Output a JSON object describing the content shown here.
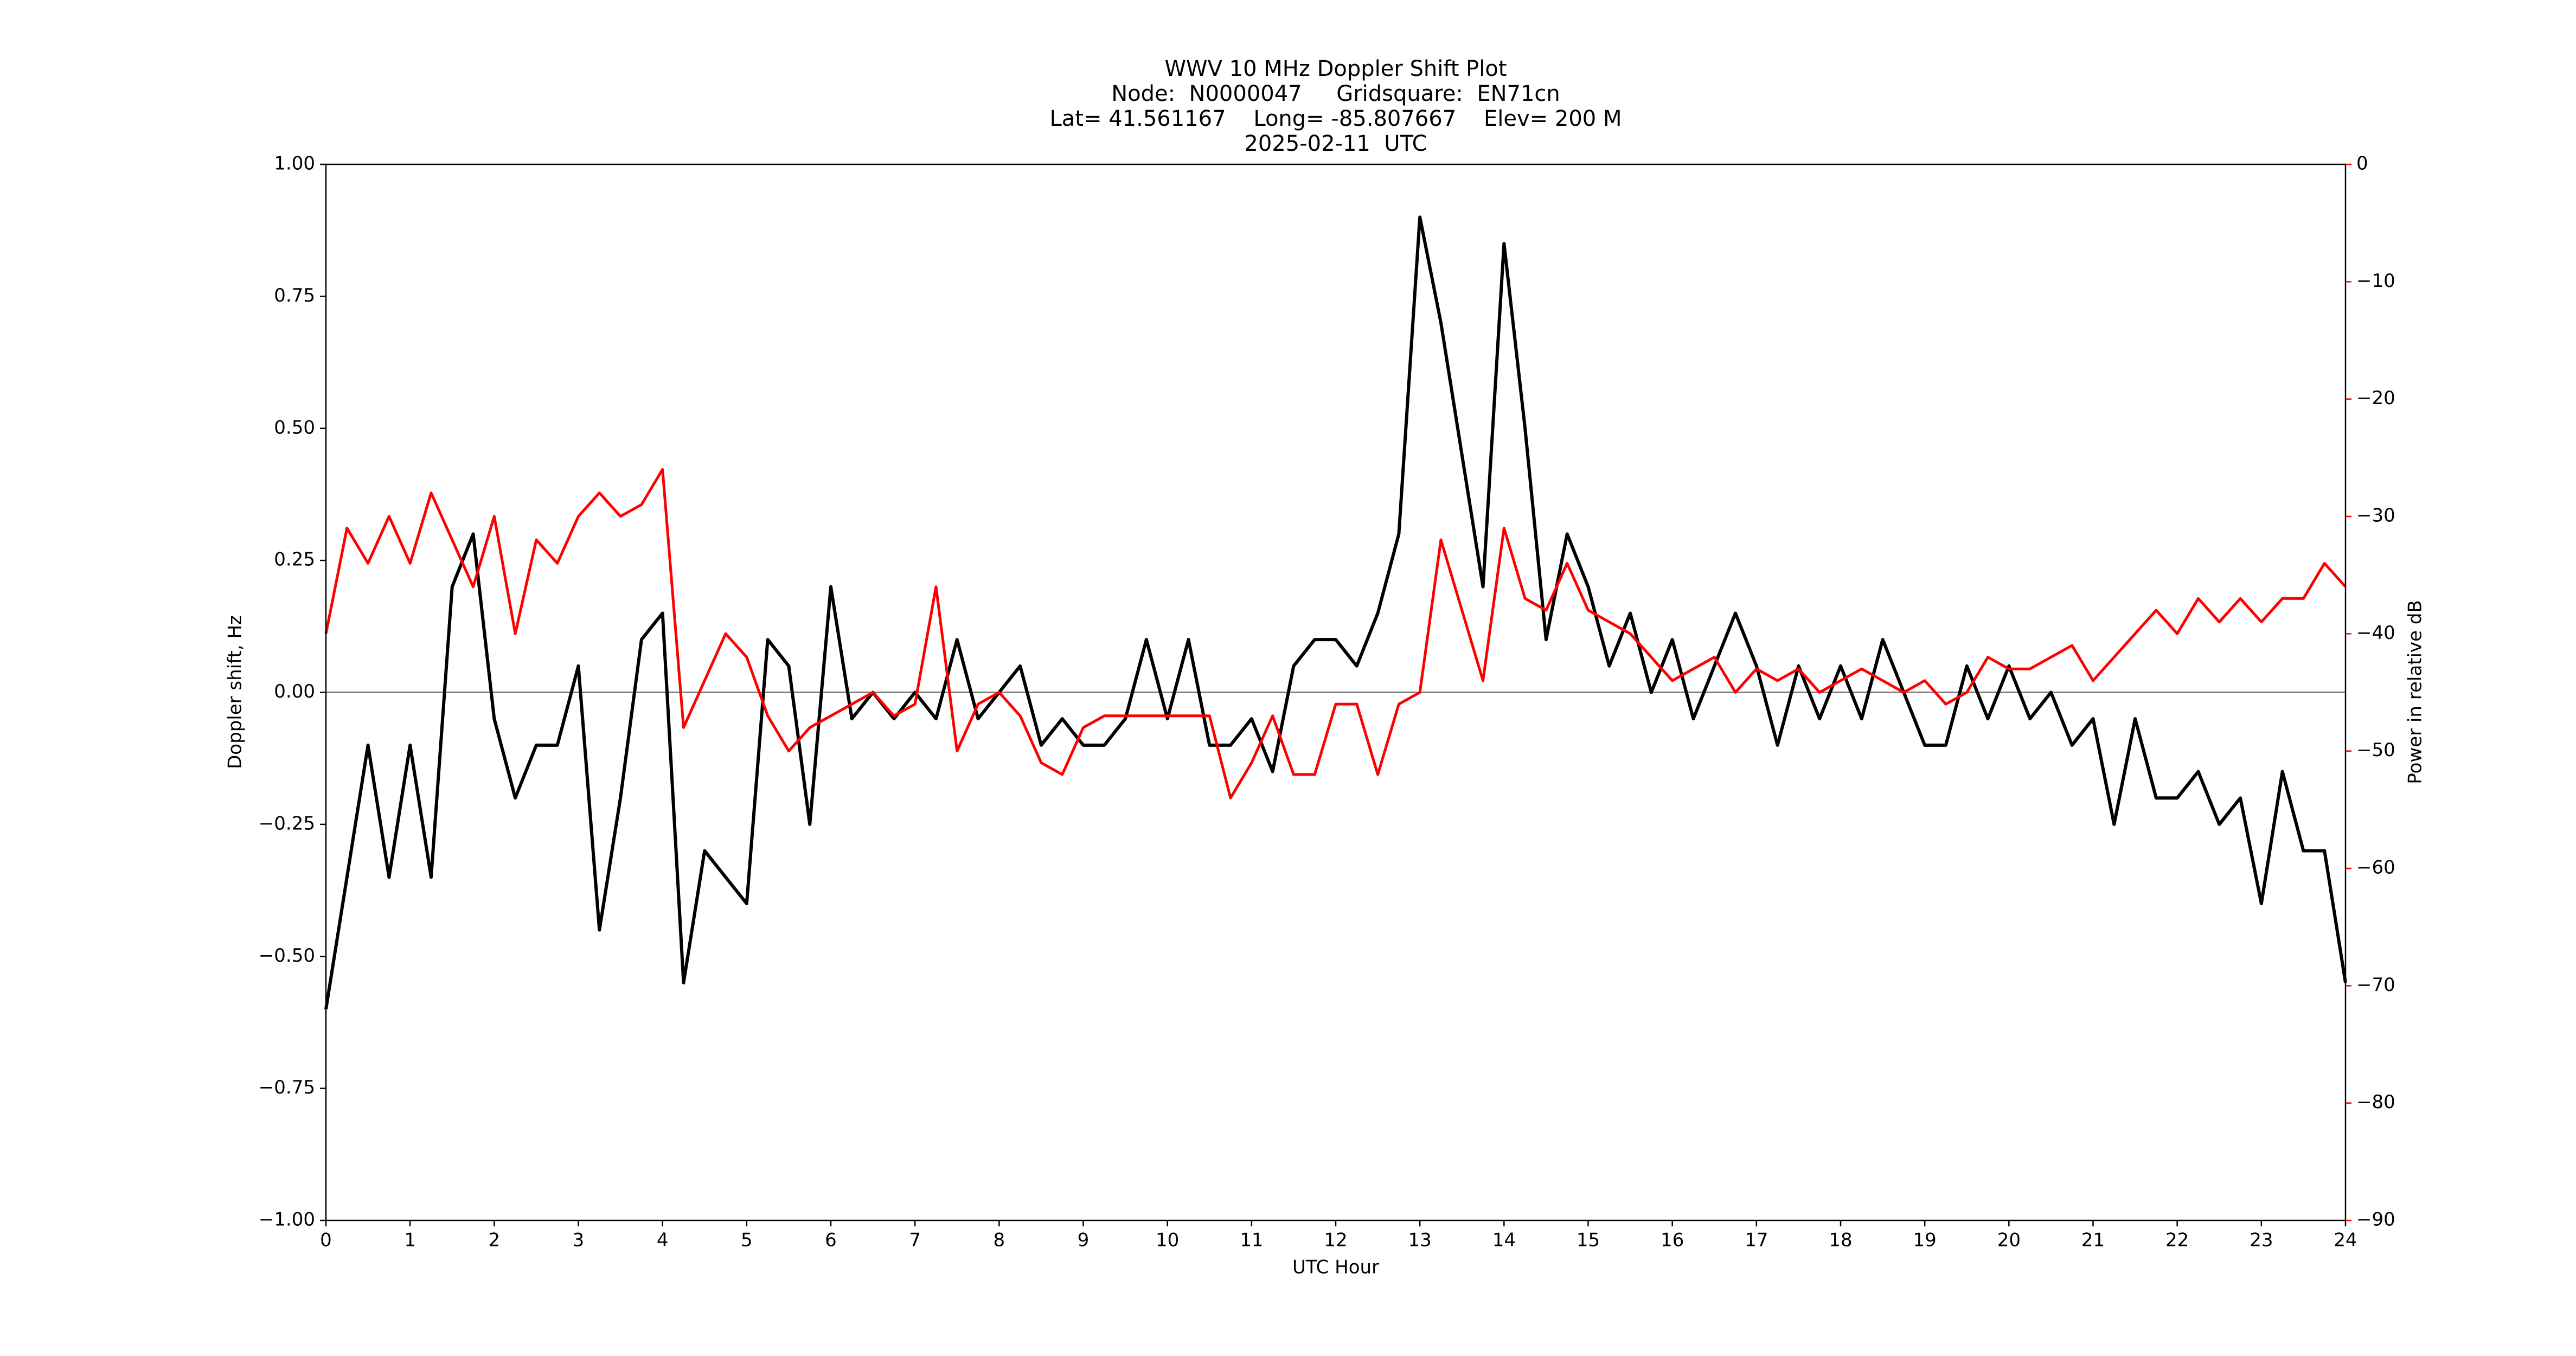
{
  "chart_data": {
    "type": "line",
    "title": "WWV 10 MHz Doppler Shift Plot",
    "subtitle": [
      "Node:  N0000047     Gridsquare:  EN71cn",
      "Lat= 41.561167    Long= -85.807667    Elev= 200 M",
      "2025-02-11  UTC"
    ],
    "x_label": "UTC Hour",
    "y_label": "Doppler shift, Hz",
    "y2_label": "Power in relative dB",
    "y2_color": "#ff0000",
    "hline": 0,
    "hline_color": "#808080",
    "xlim": [
      0,
      24
    ],
    "xticks": [
      0,
      1,
      2,
      3,
      4,
      5,
      6,
      7,
      8,
      9,
      10,
      11,
      12,
      13,
      14,
      15,
      16,
      17,
      18,
      19,
      20,
      21,
      22,
      23,
      24
    ],
    "ylim": [
      -1,
      1
    ],
    "yticks": [
      {
        "value": -1,
        "label": "−1.00"
      },
      {
        "value": -0.75,
        "label": "−0.75"
      },
      {
        "value": -0.5,
        "label": "−0.50"
      },
      {
        "value": -0.25,
        "label": "−0.25"
      },
      {
        "value": 0,
        "label": "0.00"
      },
      {
        "value": 0.25,
        "label": "0.25"
      },
      {
        "value": 0.5,
        "label": "0.50"
      },
      {
        "value": 0.75,
        "label": "0.75"
      },
      {
        "value": 1,
        "label": "1.00"
      }
    ],
    "y2lim": [
      -90,
      0
    ],
    "y2ticks": [
      {
        "value": -90,
        "label": "−90"
      },
      {
        "value": -80,
        "label": "−80"
      },
      {
        "value": -70,
        "label": "−70"
      },
      {
        "value": -60,
        "label": "−60"
      },
      {
        "value": -50,
        "label": "−50"
      },
      {
        "value": -40,
        "label": "−40"
      },
      {
        "value": -30,
        "label": "−30"
      },
      {
        "value": -20,
        "label": "−20"
      },
      {
        "value": -10,
        "label": "−10"
      },
      0
    ],
    "x": [
      0,
      0.25,
      0.5,
      0.75,
      1,
      1.25,
      1.5,
      1.75,
      2,
      2.25,
      2.5,
      2.75,
      3,
      3.25,
      3.5,
      3.75,
      4,
      4.25,
      4.5,
      4.75,
      5,
      5.25,
      5.5,
      5.75,
      6,
      6.25,
      6.5,
      6.75,
      7,
      7.25,
      7.5,
      7.75,
      8,
      8.25,
      8.5,
      8.75,
      9,
      9.25,
      9.5,
      9.75,
      10,
      10.25,
      10.5,
      10.75,
      11,
      11.25,
      11.5,
      11.75,
      12,
      12.25,
      12.5,
      12.75,
      13,
      13.25,
      13.5,
      13.75,
      14,
      14.25,
      14.5,
      14.75,
      15,
      15.25,
      15.5,
      15.75,
      16,
      16.25,
      16.5,
      16.75,
      17,
      17.25,
      17.5,
      17.75,
      18,
      18.25,
      18.5,
      18.75,
      19,
      19.25,
      19.5,
      19.75,
      20,
      20.25,
      20.5,
      20.75,
      21,
      21.25,
      21.5,
      21.75,
      22,
      22.25,
      22.5,
      22.75,
      23,
      23.25,
      23.5,
      23.75,
      24
    ],
    "series": [
      {
        "color": "#000000",
        "values": [
          -0.6,
          -0.35,
          -0.1,
          -0.35,
          -0.1,
          -0.35,
          0.2,
          0.3,
          -0.05,
          -0.2,
          -0.1,
          -0.1,
          0.05,
          -0.45,
          -0.2,
          0.1,
          0.15,
          -0.55,
          -0.3,
          -0.35,
          -0.4,
          0.1,
          0.05,
          -0.25,
          0.2,
          -0.05,
          0,
          -0.05,
          0,
          -0.05,
          0.1,
          -0.05,
          0,
          0.05,
          -0.1,
          -0.05,
          -0.1,
          -0.1,
          -0.05,
          0.1,
          -0.05,
          0.1,
          -0.1,
          -0.1,
          -0.05,
          -0.15,
          0.05,
          0.1,
          0.1,
          0.05,
          0.15,
          0.3,
          0.9,
          0.7,
          0.45,
          0.2,
          0.85,
          0.5,
          0.1,
          0.3,
          0.2,
          0.05,
          0.15,
          0,
          0.1,
          -0.05,
          0.05,
          0.15,
          0.05,
          -0.1,
          0.05,
          -0.05,
          0.05,
          -0.05,
          0.1,
          0,
          -0.1,
          -0.1,
          0.05,
          -0.05,
          0.05,
          -0.05,
          0,
          -0.1,
          -0.05,
          -0.25,
          -0.05,
          -0.2,
          -0.2,
          -0.15,
          -0.25,
          -0.2,
          -0.4,
          -0.15,
          -0.3,
          -0.3,
          -0.55
        ]
      },
      {
        "color": "#ff0000",
        "axis": "y2",
        "values": [
          -40,
          -31,
          -34,
          -30,
          -34,
          -28,
          -32,
          -36,
          -30,
          -40,
          -32,
          -34,
          -30,
          -28,
          -30,
          -29,
          -26,
          -48,
          -44,
          -40,
          -42,
          -47,
          -50,
          -48,
          -47,
          -46,
          -45,
          -47,
          -46,
          -36,
          -50,
          -46,
          -45,
          -47,
          -51,
          -52,
          -48,
          -47,
          -47,
          -47,
          -47,
          -47,
          -47,
          -54,
          -51,
          -47,
          -52,
          -52,
          -46,
          -46,
          -52,
          -46,
          -45,
          -32,
          -38,
          -44,
          -31,
          -37,
          -38,
          -34,
          -38,
          -39,
          -40,
          -42,
          -44,
          -43,
          -42,
          -45,
          -43,
          -44,
          -43,
          -45,
          -44,
          -43,
          -44,
          -45,
          -44,
          -46,
          -45,
          -42,
          -43,
          -43,
          -42,
          -41,
          -44,
          -42,
          -40,
          -38,
          -40,
          -37,
          -39,
          -37,
          -39,
          -37,
          -37,
          -34,
          -36
        ]
      }
    ]
  }
}
